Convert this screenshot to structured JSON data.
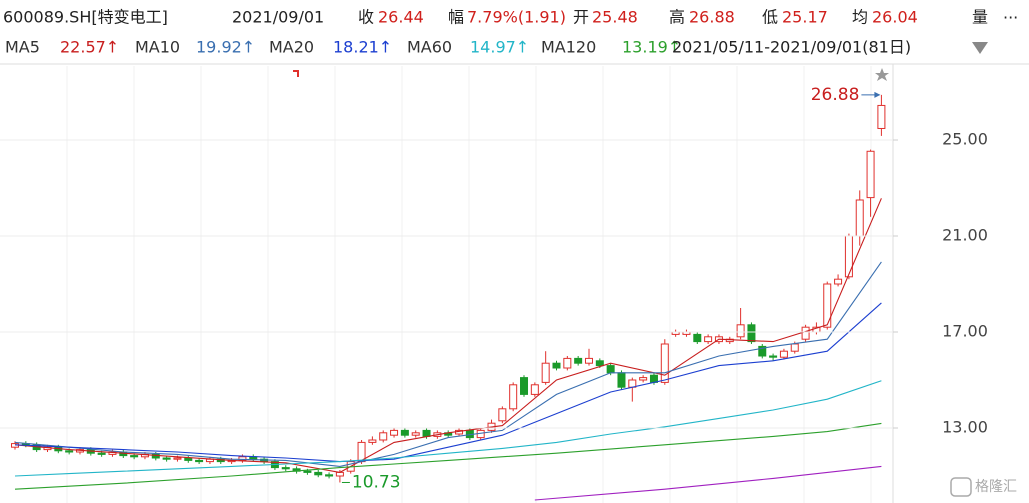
{
  "chart_data": {
    "type": "candlestick",
    "title": "600089.SH[特变电工]",
    "date": "2021/09/01",
    "quote_labels": {
      "close": "收",
      "change": "幅",
      "open": "开",
      "high": "高",
      "low": "低",
      "avg": "均",
      "volume": "量"
    },
    "change_text": "7.79%(1.91)",
    "avg": 26.04,
    "more": "...",
    "range_label": "2021/05/11-2021/09/01(81日)",
    "watermark": "格隆汇",
    "up_color": "#e0302c",
    "down_color": "#1a9a2a",
    "open": [
      12.2,
      12.35,
      12.3,
      12.1,
      12.2,
      12.05,
      12.0,
      12.1,
      11.95,
      11.9,
      12.0,
      11.85,
      11.8,
      11.9,
      11.75,
      11.7,
      11.75,
      11.65,
      11.6,
      11.7,
      11.6,
      11.65,
      11.8,
      11.7,
      11.6,
      11.35,
      11.3,
      11.2,
      11.15,
      11.05,
      11.0,
      11.2,
      11.6,
      12.4,
      12.5,
      12.7,
      12.9,
      12.7,
      12.9,
      12.65,
      12.8,
      12.75,
      12.9,
      12.6,
      12.9,
      13.3,
      13.8,
      15.1,
      14.4,
      14.9,
      15.7,
      15.5,
      15.9,
      15.7,
      15.8,
      15.6,
      15.3,
      14.7,
      15.0,
      15.2,
      14.9,
      16.9,
      16.9,
      16.9,
      16.6,
      16.6,
      16.6,
      16.8,
      17.3,
      16.4,
      16.0,
      15.95,
      16.2,
      16.7,
      17.0,
      17.2,
      19.0,
      19.3,
      21.0,
      22.6,
      25.48
    ],
    "high": [
      12.45,
      12.45,
      12.4,
      12.3,
      12.3,
      12.15,
      12.2,
      12.2,
      12.05,
      12.1,
      12.1,
      11.95,
      12.0,
      12.0,
      11.85,
      11.85,
      11.85,
      11.75,
      11.8,
      11.8,
      11.75,
      11.9,
      11.9,
      11.8,
      11.7,
      11.45,
      11.4,
      11.3,
      11.25,
      11.15,
      11.25,
      11.7,
      12.5,
      12.65,
      12.9,
      13.0,
      13.0,
      12.9,
      13.0,
      12.9,
      12.9,
      13.0,
      13.0,
      13.0,
      13.35,
      13.9,
      14.9,
      15.2,
      14.9,
      16.2,
      15.8,
      16.0,
      16.0,
      16.3,
      15.9,
      15.7,
      15.4,
      15.1,
      15.2,
      15.3,
      16.7,
      17.1,
      17.1,
      17.0,
      16.9,
      16.9,
      16.8,
      18.0,
      17.4,
      16.5,
      16.1,
      16.3,
      16.6,
      17.3,
      17.4,
      19.1,
      19.4,
      21.1,
      22.9,
      24.6,
      26.88
    ],
    "low": [
      12.1,
      12.2,
      12.0,
      12.0,
      11.95,
      11.9,
      11.9,
      11.85,
      11.8,
      11.8,
      11.75,
      11.7,
      11.7,
      11.65,
      11.6,
      11.6,
      11.55,
      11.5,
      11.5,
      11.5,
      11.5,
      11.55,
      11.6,
      11.5,
      11.25,
      11.2,
      11.1,
      11.05,
      10.95,
      10.9,
      10.73,
      11.1,
      11.5,
      12.3,
      12.4,
      12.6,
      12.6,
      12.6,
      12.55,
      12.55,
      12.6,
      12.65,
      12.5,
      12.5,
      12.8,
      13.2,
      13.7,
      14.3,
      14.3,
      14.8,
      15.4,
      15.4,
      15.6,
      15.6,
      15.5,
      15.2,
      14.6,
      14.1,
      14.9,
      14.8,
      14.8,
      16.8,
      16.8,
      16.5,
      16.5,
      16.5,
      16.5,
      16.7,
      16.5,
      15.9,
      15.8,
      15.85,
      16.1,
      16.6,
      16.9,
      17.1,
      18.9,
      19.2,
      20.6,
      21.8,
      25.17
    ],
    "close": [
      12.35,
      12.3,
      12.1,
      12.2,
      12.05,
      12.0,
      12.1,
      11.95,
      11.9,
      12.0,
      11.85,
      11.8,
      11.9,
      11.75,
      11.7,
      11.75,
      11.65,
      11.6,
      11.7,
      11.6,
      11.65,
      11.8,
      11.7,
      11.6,
      11.35,
      11.3,
      11.2,
      11.15,
      11.05,
      11.0,
      11.15,
      11.6,
      12.4,
      12.5,
      12.8,
      12.9,
      12.7,
      12.8,
      12.65,
      12.8,
      12.7,
      12.9,
      12.6,
      12.9,
      13.2,
      13.8,
      14.8,
      14.4,
      14.8,
      15.7,
      15.5,
      15.9,
      15.7,
      15.9,
      15.6,
      15.3,
      14.7,
      15.0,
      15.1,
      14.9,
      16.5,
      17.0,
      17.0,
      16.6,
      16.8,
      16.8,
      16.7,
      17.3,
      16.6,
      16.0,
      15.95,
      16.2,
      16.5,
      17.2,
      17.2,
      19.0,
      19.2,
      21.0,
      22.5,
      24.53,
      26.44
    ],
    "ma": [
      {
        "name": "MA5",
        "value_label": "22.57↑",
        "color": "#c81e1e",
        "x": [
          0,
          5,
          10,
          15,
          20,
          25,
          30,
          35,
          40,
          45,
          50,
          55,
          60,
          65,
          70,
          75,
          80
        ],
        "values": [
          12.3,
          12.1,
          11.95,
          11.8,
          11.65,
          11.55,
          11.15,
          12.4,
          12.8,
          13.1,
          15.0,
          15.7,
          15.2,
          16.7,
          16.6,
          17.3,
          22.57
        ]
      },
      {
        "name": "MA10",
        "value_label": "19.92↑",
        "color": "#3a6fb0",
        "x": [
          0,
          5,
          10,
          15,
          20,
          25,
          30,
          35,
          40,
          45,
          50,
          55,
          60,
          65,
          70,
          75,
          80
        ],
        "values": [
          12.4,
          12.2,
          12.0,
          11.9,
          11.7,
          11.65,
          11.4,
          11.9,
          12.6,
          12.9,
          14.4,
          15.3,
          15.3,
          16.0,
          16.4,
          16.7,
          19.92
        ]
      },
      {
        "name": "MA20",
        "value_label": "18.21↑",
        "color": "#1c3fd0",
        "x": [
          0,
          5,
          10,
          15,
          20,
          25,
          30,
          35,
          40,
          45,
          50,
          55,
          60,
          65,
          70,
          75,
          80
        ],
        "values": [
          12.3,
          12.2,
          12.1,
          12.0,
          11.85,
          11.75,
          11.6,
          11.7,
          12.2,
          12.7,
          13.6,
          14.5,
          15.0,
          15.6,
          15.8,
          16.2,
          18.21
        ]
      },
      {
        "name": "MA60",
        "value_label": "14.97↑",
        "color": "#22b5c8",
        "x": [
          0,
          5,
          10,
          15,
          20,
          25,
          30,
          35,
          40,
          45,
          50,
          55,
          60,
          65,
          70,
          75,
          80
        ],
        "values": [
          11.0,
          11.1,
          11.2,
          11.3,
          11.4,
          11.5,
          11.6,
          11.75,
          11.95,
          12.15,
          12.4,
          12.75,
          13.05,
          13.4,
          13.75,
          14.2,
          14.97
        ]
      },
      {
        "name": "MA120",
        "value_label": "13.19↑",
        "color": "#2ca02c",
        "x": [
          0,
          10,
          20,
          30,
          40,
          50,
          60,
          70,
          75,
          80
        ],
        "values": [
          10.45,
          10.7,
          11.0,
          11.35,
          11.65,
          11.95,
          12.3,
          12.65,
          12.85,
          13.19
        ]
      },
      {
        "color": "#a020c0",
        "x": [
          48,
          60,
          70,
          80
        ],
        "values": [
          10.0,
          10.45,
          10.9,
          11.4
        ]
      }
    ],
    "ylim": [
      10,
      28
    ],
    "yticks": [
      {
        "value": 13,
        "label": "13.00"
      },
      {
        "value": 17,
        "label": "17.00"
      },
      {
        "value": 21,
        "label": "21.00"
      },
      {
        "value": 25,
        "label": "25.00"
      }
    ],
    "grid": true
  }
}
